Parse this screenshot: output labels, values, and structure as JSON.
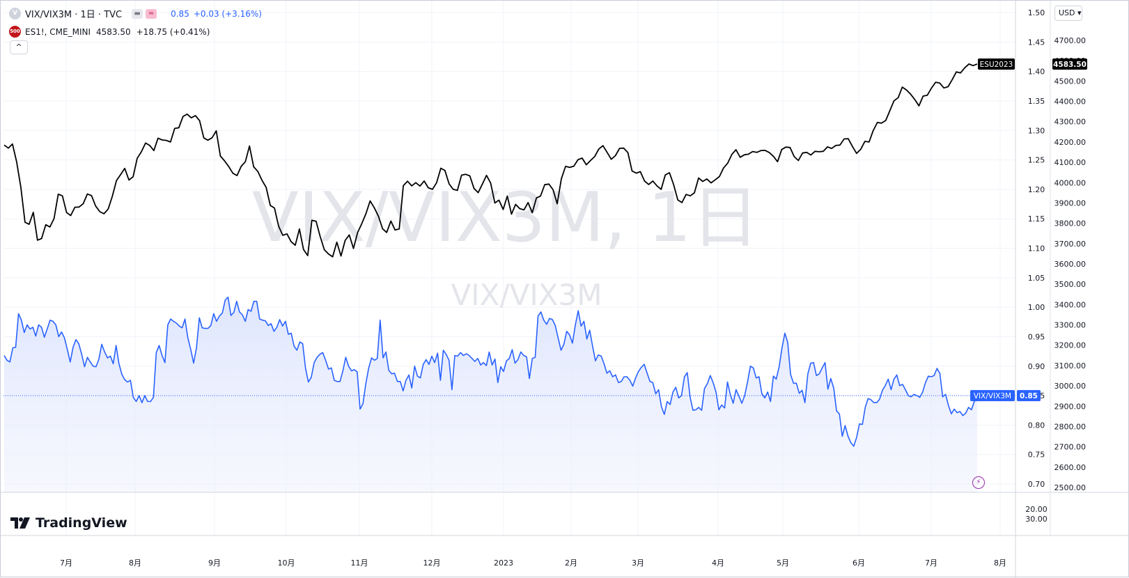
{
  "legend": {
    "main": {
      "icon": "V",
      "title": "VIX/VIX3M · 1日 · TVC",
      "value": "0.85",
      "change": "+0.03 (+3.16%)",
      "buttons": [
        "minus-icon",
        "waves-icon"
      ]
    },
    "compare": {
      "icon": "500",
      "symbol": "ES1!, CME_MINI",
      "price": "4583.50",
      "change": "+18.75 (+0.41%)"
    },
    "collapse_glyph": "^"
  },
  "currency": "USD ▾",
  "watermark": {
    "big": "VIX/VIX3M, 1日",
    "small": "VIX/VIX3M"
  },
  "branding": "TradingView",
  "price_tags": {
    "es_label": "ESU2023",
    "es_value": "4583.50",
    "vix_label": "VIX/VIX3M",
    "vix_value": "0.85"
  },
  "colors": {
    "es_line": "#000000",
    "vix_line": "#2962ff",
    "vix_fill": "#eef1fd",
    "grid": "#f0f3fa",
    "tag_dark": "#000000"
  },
  "chart_data": {
    "type": "line",
    "x_start": "2022-06-08",
    "x_end": "2023-07-20",
    "xticks": [
      "7月",
      "8月",
      "9月",
      "10月",
      "11月",
      "12月",
      "2023",
      "2月",
      "3月",
      "4月",
      "5月",
      "6月",
      "7月",
      "8月"
    ],
    "ratio_axis": {
      "ylim": [
        0.68,
        1.52
      ],
      "ticks": [
        "1.50",
        "1.45",
        "1.40",
        "1.35",
        "1.30",
        "1.25",
        "1.20",
        "1.15",
        "1.10",
        "1.05",
        "1.00",
        "0.95",
        "0.90",
        "0.85",
        "0.80",
        "0.75",
        "0.70"
      ]
    },
    "price_axis": {
      "ylim": [
        2475,
        4775
      ],
      "ticks": [
        "4700.00",
        "4600.00",
        "4500.00",
        "4400.00",
        "4300.00",
        "4200.00",
        "4100.00",
        "4000.00",
        "3900.00",
        "3800.00",
        "3700.00",
        "3600.00",
        "3500.00",
        "3400.00",
        "3300.00",
        "3200.00",
        "3100.00",
        "3000.00",
        "2900.00",
        "2800.00",
        "2700.00",
        "2600.00",
        "2500.00"
      ]
    },
    "lower_pane": {
      "ticks": [
        "20.00",
        "30.00"
      ]
    },
    "series": [
      {
        "name": "ES1!, CME_MINI",
        "axis": "price",
        "values": [
          4185,
          4170,
          4190,
          4102,
          3978,
          3805,
          3795,
          3854,
          3717,
          3725,
          3793,
          3782,
          3823,
          3943,
          3935,
          3853,
          3838,
          3879,
          3880,
          3896,
          3944,
          3936,
          3885,
          3857,
          3847,
          3870,
          3932,
          4010,
          4040,
          4070,
          4013,
          4029,
          4120,
          4152,
          4195,
          4183,
          4158,
          4219,
          4210,
          4208,
          4200,
          4267,
          4270,
          4325,
          4337,
          4319,
          4330,
          4305,
          4220,
          4209,
          4221,
          4255,
          4131,
          4107,
          4079,
          4046,
          4035,
          4080,
          4103,
          4180,
          4078,
          4055,
          4012,
          3977,
          3888,
          3875,
          3786,
          3741,
          3748,
          3710,
          3692,
          3772,
          3671,
          3641,
          3815,
          3810,
          3735,
          3670,
          3649,
          3635,
          3707,
          3639,
          3715,
          3743,
          3676,
          3755,
          3798,
          3847,
          3910,
          3877,
          3835,
          3773,
          3755,
          3811,
          3767,
          3772,
          3985,
          4007,
          3984,
          4000,
          3983,
          4008,
          3975,
          3967,
          4000,
          4071,
          4060,
          3994,
          3967,
          3962,
          4037,
          4041,
          4033,
          3971,
          3951,
          3993,
          4036,
          3998,
          3900,
          3914,
          3868,
          3934,
          3845,
          3893,
          3872,
          3866,
          3902,
          3852,
          3925,
          3934,
          3990,
          3993,
          3965,
          3896,
          4019,
          4080,
          4075,
          4081,
          4113,
          4121,
          4088,
          4109,
          4128,
          4165,
          4182,
          4149,
          4115,
          4133,
          4169,
          4170,
          4148,
          4057,
          4047,
          4054,
          4008,
          3991,
          4008,
          3984,
          3967,
          4038,
          4049,
          3990,
          3915,
          3902,
          3942,
          3935,
          3950,
          4023,
          4006,
          4018,
          3999,
          4014,
          4030,
          4072,
          4096,
          4139,
          4162,
          4125,
          4137,
          4140,
          4153,
          4149,
          4158,
          4159,
          4148,
          4129,
          4103,
          4163,
          4175,
          4173,
          4128,
          4109,
          4146,
          4149,
          4136,
          4154,
          4152,
          4154,
          4176,
          4168,
          4183,
          4185,
          4215,
          4216,
          4178,
          4144,
          4164,
          4203,
          4200,
          4256,
          4296,
          4293,
          4306,
          4354,
          4403,
          4418,
          4470,
          4456,
          4435,
          4409,
          4378,
          4426,
          4430,
          4465,
          4494,
          4490,
          4466,
          4472,
          4507,
          4545,
          4540,
          4565,
          4584,
          4576,
          4583.5
        ]
      },
      {
        "name": "VIX/VIX3M",
        "axis": "ratio",
        "values": [
          0.918,
          0.91,
          0.907,
          0.931,
          0.932,
          0.989,
          0.978,
          0.957,
          0.97,
          0.963,
          0.966,
          0.951,
          0.97,
          0.966,
          0.949,
          0.963,
          0.978,
          0.976,
          0.97,
          0.95,
          0.958,
          0.948,
          0.928,
          0.907,
          0.932,
          0.945,
          0.938,
          0.92,
          0.899,
          0.915,
          0.907,
          0.9,
          0.899,
          0.912,
          0.937,
          0.924,
          0.914,
          0.917,
          0.904,
          0.935,
          0.904,
          0.886,
          0.877,
          0.873,
          0.876,
          0.847,
          0.84,
          0.85,
          0.838,
          0.85,
          0.84,
          0.84,
          0.847,
          0.923,
          0.935,
          0.918,
          0.906,
          0.97,
          0.98,
          0.976,
          0.973,
          0.968,
          0.965,
          0.98,
          0.948,
          0.928,
          0.905,
          0.931,
          0.982,
          0.965,
          0.964,
          0.964,
          0.969,
          0.989,
          0.976,
          0.985,
          0.99,
          1.012,
          1.017,
          0.986,
          0.991,
          1.01,
          0.992,
          0.987,
          0.976,
          0.996,
          0.993,
          1.01,
          1.01,
          0.98,
          0.978,
          0.977,
          0.969,
          0.972,
          0.959,
          0.966,
          0.979,
          0.968,
          0.976,
          0.954,
          0.956,
          0.934,
          0.927,
          0.941,
          0.938,
          0.896,
          0.873,
          0.881,
          0.906,
          0.915,
          0.92,
          0.923,
          0.91,
          0.895,
          0.897,
          0.876,
          0.874,
          0.874,
          0.892,
          0.915,
          0.9,
          0.892,
          0.894,
          0.89,
          0.827,
          0.836,
          0.87,
          0.897,
          0.914,
          0.91,
          0.913,
          0.978,
          0.914,
          0.924,
          0.893,
          0.887,
          0.888,
          0.874,
          0.874,
          0.858,
          0.876,
          0.885,
          0.863,
          0.9,
          0.883,
          0.88,
          0.903,
          0.911,
          0.903,
          0.917,
          0.906,
          0.922,
          0.876,
          0.927,
          0.92,
          0.91,
          0.86,
          0.918,
          0.917,
          0.923,
          0.918,
          0.921,
          0.918,
          0.913,
          0.908,
          0.913,
          0.902,
          0.906,
          0.901,
          0.924,
          0.902,
          0.912,
          0.872,
          0.899,
          0.891,
          0.909,
          0.913,
          0.928,
          0.905,
          0.911,
          0.924,
          0.918,
          0.916,
          0.879,
          0.913,
          0.915,
          0.985,
          0.992,
          0.978,
          0.971,
          0.981,
          0.979,
          0.969,
          0.948,
          0.927,
          0.937,
          0.959,
          0.953,
          0.939,
          0.97,
          0.994,
          0.968,
          0.976,
          0.946,
          0.961,
          0.934,
          0.909,
          0.919,
          0.917,
          0.904,
          0.888,
          0.892,
          0.882,
          0.885,
          0.872,
          0.874,
          0.882,
          0.882,
          0.876,
          0.866,
          0.88,
          0.891,
          0.898,
          0.903,
          0.888,
          0.874,
          0.872,
          0.853,
          0.86,
          0.831,
          0.818,
          0.84,
          0.835,
          0.856,
          0.864,
          0.846,
          0.85,
          0.882,
          0.889,
          0.847,
          0.825,
          0.826,
          0.83,
          0.825,
          0.862,
          0.87,
          0.884,
          0.872,
          0.856,
          0.826,
          0.834,
          0.829,
          0.873,
          0.852,
          0.837,
          0.86,
          0.849,
          0.837,
          0.85,
          0.873,
          0.9,
          0.897,
          0.88,
          0.882,
          0.853,
          0.846,
          0.856,
          0.84,
          0.883,
          0.878,
          0.899,
          0.931,
          0.956,
          0.94,
          0.886,
          0.871,
          0.871,
          0.854,
          0.859,
          0.838,
          0.887,
          0.905,
          0.906,
          0.884,
          0.887,
          0.897,
          0.906,
          0.861,
          0.879,
          0.863,
          0.824,
          0.819,
          0.781,
          0.799,
          0.781,
          0.77,
          0.764,
          0.779,
          0.802,
          0.801,
          0.83,
          0.845,
          0.843,
          0.838,
          0.838,
          0.844,
          0.859,
          0.867,
          0.878,
          0.86,
          0.878,
          0.885,
          0.867,
          0.869,
          0.86,
          0.85,
          0.848,
          0.852,
          0.85,
          0.847,
          0.856,
          0.872,
          0.883,
          0.882,
          0.884,
          0.896,
          0.888,
          0.848,
          0.852,
          0.833,
          0.819,
          0.827,
          0.821,
          0.823,
          0.816,
          0.82,
          0.83,
          0.826,
          0.84,
          0.85
        ]
      }
    ]
  }
}
